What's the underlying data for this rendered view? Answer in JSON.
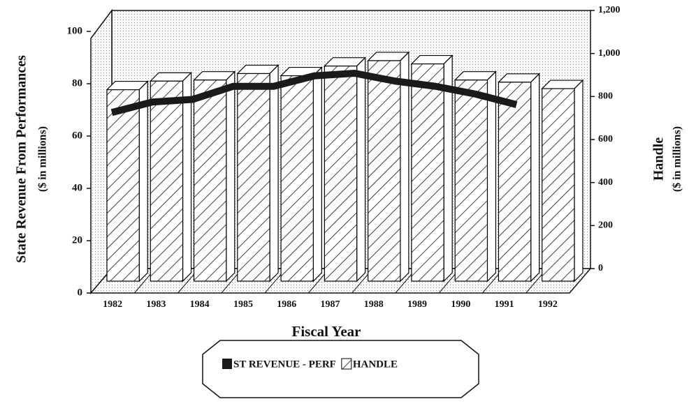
{
  "chart_data": {
    "type": "bar",
    "categories": [
      "1982",
      "1983",
      "1984",
      "1985",
      "1986",
      "1987",
      "1988",
      "1989",
      "1990",
      "1991",
      "1992"
    ],
    "series": [
      {
        "name": "ST REVENUE - PERF",
        "type": "line",
        "color": "#1a1a1a",
        "values": [
          69,
          73,
          74,
          79,
          79,
          83,
          84,
          81,
          79,
          76,
          72
        ]
      },
      {
        "name": "HANDLE",
        "type": "bar",
        "axis": "y2",
        "color": "#000000",
        "values": [
          890,
          930,
          935,
          965,
          955,
          1000,
          1025,
          1010,
          935,
          925,
          895
        ]
      }
    ],
    "ylabel": "State Revenue From Performances",
    "ylabel_sub": "($ in millions)",
    "y2label": "Handle",
    "y2label_sub": "($ in millions)",
    "xlabel": "Fiscal Year",
    "ylim": [
      0,
      100
    ],
    "yticks": [
      0,
      20,
      40,
      60,
      80,
      100
    ],
    "y2lim": [
      0,
      1200
    ],
    "y2ticks": [
      0,
      200,
      400,
      600,
      800,
      {
        "value": 1000,
        "label": "1,000"
      },
      {
        "value": 1200,
        "label": "1,200"
      }
    ],
    "legend": "bottom"
  }
}
